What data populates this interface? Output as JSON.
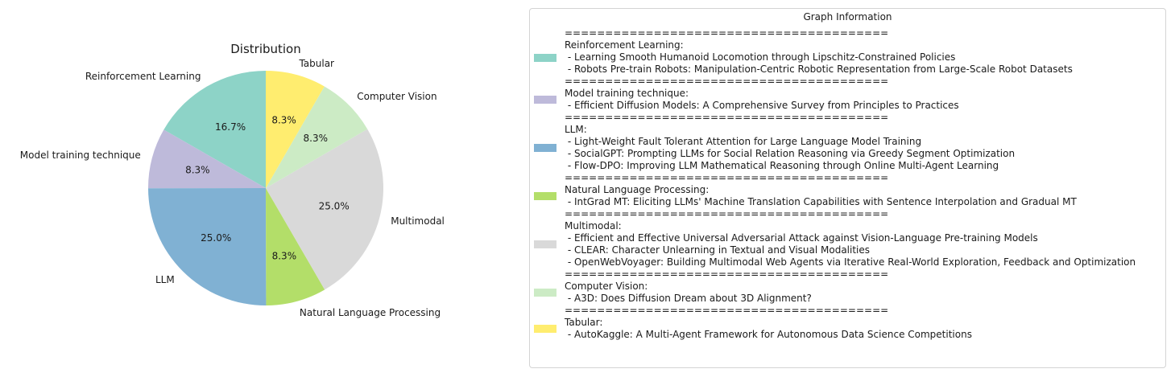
{
  "chart_data": {
    "type": "pie",
    "title": "Distribution",
    "slices": [
      {
        "label": "Reinforcement Learning",
        "value": 16.7,
        "pct_label": "16.7%",
        "color": "#8dd3c7"
      },
      {
        "label": "Model training technique",
        "value": 8.3,
        "pct_label": "8.3%",
        "color": "#bebada"
      },
      {
        "label": "LLM",
        "value": 25.0,
        "pct_label": "25.0%",
        "color": "#80b1d3"
      },
      {
        "label": "Natural Language Processing",
        "value": 8.3,
        "pct_label": "8.3%",
        "color": "#b3de69"
      },
      {
        "label": "Multimodal",
        "value": 25.0,
        "pct_label": "25.0%",
        "color": "#d9d9d9"
      },
      {
        "label": "Computer Vision",
        "value": 8.3,
        "pct_label": "8.3%",
        "color": "#ccebc5"
      },
      {
        "label": "Tabular",
        "value": 8.3,
        "pct_label": "8.3%",
        "color": "#ffed6f"
      }
    ],
    "start_angle_deg": 90,
    "direction": "counterclockwise"
  },
  "legend": {
    "title": "Graph Information",
    "separator": "========================================",
    "entries": [
      {
        "color": "#8dd3c7",
        "lines": [
          "Reinforcement Learning:",
          " - Learning Smooth Humanoid Locomotion through Lipschitz-Constrained Policies",
          " - Robots Pre-train Robots: Manipulation-Centric Robotic Representation from Large-Scale Robot Datasets"
        ]
      },
      {
        "color": "#bebada",
        "lines": [
          "Model training technique:",
          " - Efficient Diffusion Models: A Comprehensive Survey from Principles to Practices"
        ]
      },
      {
        "color": "#80b1d3",
        "lines": [
          "LLM:",
          " - Light-Weight Fault Tolerant Attention for Large Language Model Training",
          " - SocialGPT: Prompting LLMs for Social Relation Reasoning via Greedy Segment Optimization",
          " - Flow-DPO: Improving LLM Mathematical Reasoning through Online Multi-Agent Learning"
        ]
      },
      {
        "color": "#b3de69",
        "lines": [
          "Natural Language Processing:",
          " - IntGrad MT: Eliciting LLMs' Machine Translation Capabilities with Sentence Interpolation and Gradual MT"
        ]
      },
      {
        "color": "#d9d9d9",
        "lines": [
          "Multimodal:",
          " - Efficient and Effective Universal Adversarial Attack against Vision-Language Pre-training Models",
          " - CLEAR: Character Unlearning in Textual and Visual Modalities",
          " - OpenWebVoyager: Building Multimodal Web Agents via Iterative Real-World Exploration, Feedback and Optimization"
        ]
      },
      {
        "color": "#ccebc5",
        "lines": [
          "Computer Vision:",
          " - A3D: Does Diffusion Dream about 3D Alignment?"
        ]
      },
      {
        "color": "#ffed6f",
        "lines": [
          "Tabular:",
          " - AutoKaggle: A Multi-Agent Framework for Autonomous Data Science Competitions"
        ]
      }
    ]
  }
}
